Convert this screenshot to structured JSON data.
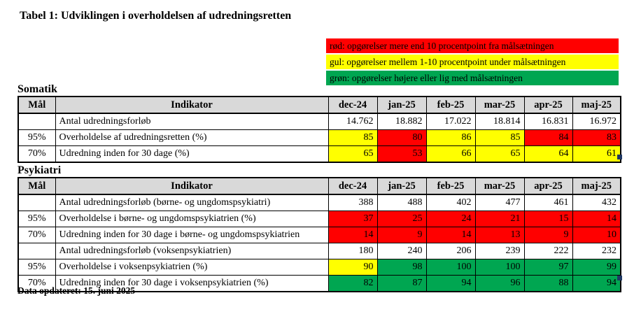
{
  "title": "Tabel 1: Udviklingen i overholdelsen af udredningsretten",
  "legend": {
    "items": [
      {
        "key": "red",
        "label": "rød: opgørelser mere end 10 procentpoint fra målsætningen"
      },
      {
        "key": "yellow",
        "label": "gul: opgørelser mellem 1-10 procentpoint under målsætningen"
      },
      {
        "key": "green",
        "label": "grøn: opgørelser højere eller lig med målsætningen"
      }
    ]
  },
  "colors": {
    "red": "#FF0000",
    "yellow": "#FFFF00",
    "green": "#00A651",
    "white": "#FFFFFF",
    "header_gray": "#D9D9D9",
    "handle_navy": "#1F3864"
  },
  "columns": [
    "Mål",
    "Indikator",
    "dec-24",
    "jan-25",
    "feb-25",
    "mar-25",
    "apr-25",
    "maj-25"
  ],
  "tables": [
    {
      "section": "Somatik",
      "rows": [
        {
          "maal": "",
          "indikator": "Antal udredningsforløb",
          "values": [
            "14.762",
            "18.882",
            "17.022",
            "18.814",
            "16.831",
            "16.972"
          ],
          "cell_colors": [
            "white",
            "white",
            "white",
            "white",
            "white",
            "white"
          ]
        },
        {
          "maal": "95%",
          "indikator": "Overholdelse af udredningsretten (%)",
          "values": [
            "85",
            "80",
            "86",
            "85",
            "84",
            "83"
          ],
          "cell_colors": [
            "yellow",
            "red",
            "yellow",
            "yellow",
            "red",
            "red"
          ]
        },
        {
          "maal": "70%",
          "indikator": "Udredning inden for 30 dage (%)",
          "values": [
            "65",
            "53",
            "66",
            "65",
            "64",
            "61"
          ],
          "cell_colors": [
            "yellow",
            "red",
            "yellow",
            "yellow",
            "yellow",
            "yellow"
          ]
        }
      ]
    },
    {
      "section": "Psykiatri",
      "rows": [
        {
          "maal": "",
          "indikator": "Antal udredningsforløb (børne- og ungdomspsykiatri)",
          "values": [
            "388",
            "488",
            "402",
            "477",
            "461",
            "432"
          ],
          "cell_colors": [
            "white",
            "white",
            "white",
            "white",
            "white",
            "white"
          ]
        },
        {
          "maal": "95%",
          "indikator": "Overholdelse i børne- og ungdomspsykiatrien (%)",
          "values": [
            "37",
            "25",
            "24",
            "21",
            "15",
            "14"
          ],
          "cell_colors": [
            "red",
            "red",
            "red",
            "red",
            "red",
            "red"
          ]
        },
        {
          "maal": "70%",
          "indikator": "Udredning inden for 30 dage i børne- og ungdomspsykiatrien",
          "values": [
            "14",
            "9",
            "14",
            "13",
            "9",
            "10"
          ],
          "cell_colors": [
            "red",
            "red",
            "red",
            "red",
            "red",
            "red"
          ]
        },
        {
          "maal": "",
          "indikator": "Antal udredningsforløb (voksenpsykiatrien)",
          "values": [
            "180",
            "240",
            "206",
            "239",
            "222",
            "232"
          ],
          "cell_colors": [
            "white",
            "white",
            "white",
            "white",
            "white",
            "white"
          ]
        },
        {
          "maal": "95%",
          "indikator": "Overholdelse i voksenpsykiatrien (%)",
          "values": [
            "90",
            "98",
            "100",
            "100",
            "97",
            "99"
          ],
          "cell_colors": [
            "yellow",
            "green",
            "green",
            "green",
            "green",
            "green"
          ]
        },
        {
          "maal": "70%",
          "indikator": "Udredning inden for 30 dage i voksenpsykiatrien (%)",
          "values": [
            "82",
            "87",
            "94",
            "96",
            "88",
            "94"
          ],
          "cell_colors": [
            "green",
            "green",
            "green",
            "green",
            "green",
            "green"
          ]
        }
      ]
    }
  ],
  "footer": "Data opdateret: 15. juni 2025"
}
